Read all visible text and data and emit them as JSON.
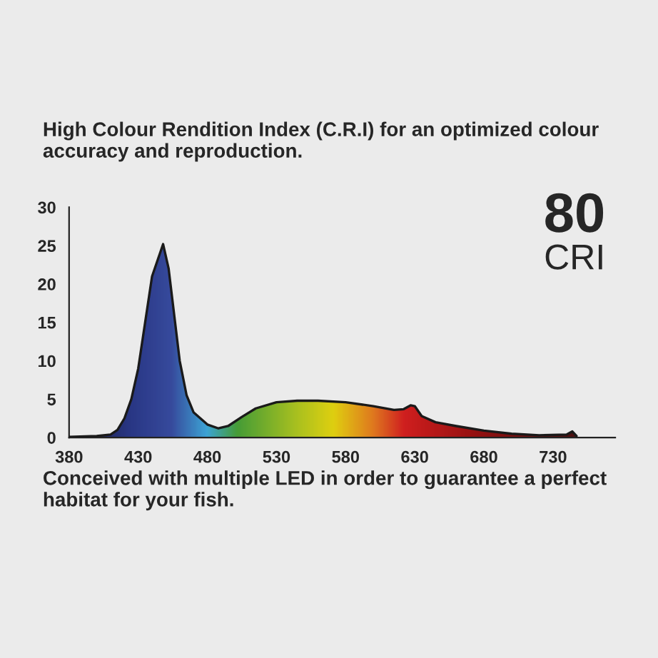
{
  "chart_data": {
    "type": "area",
    "title": "High Colour Rendition Index (C.R.I) for an optimized colour accuracy and reproduction.",
    "annotations": [
      "80",
      "CRI",
      "Conceived with multiple LED in order to guarantee a perfect habitat for your fish."
    ],
    "x": [
      380,
      400,
      410,
      415,
      420,
      425,
      430,
      435,
      440,
      448,
      452,
      456,
      460,
      465,
      470,
      480,
      488,
      495,
      505,
      515,
      530,
      545,
      560,
      580,
      600,
      615,
      622,
      627,
      630,
      635,
      645,
      660,
      680,
      700,
      720,
      740,
      744,
      747
    ],
    "series": [
      {
        "color": "#1a1a1a",
        "values": [
          0.1,
          0.2,
          0.4,
          1,
          2.5,
          5,
          9,
          15,
          21,
          25.2,
          22,
          16,
          10,
          5.5,
          3.3,
          1.7,
          1.2,
          1.5,
          2.7,
          3.8,
          4.6,
          4.8,
          4.8,
          4.6,
          4.1,
          3.6,
          3.7,
          4.2,
          4.1,
          2.8,
          2.0,
          1.5,
          0.9,
          0.5,
          0.3,
          0.4,
          0.8,
          0.2
        ]
      }
    ],
    "xlim": [
      380,
      775
    ],
    "ylim": [
      0,
      30
    ],
    "xticks": [
      380,
      430,
      480,
      530,
      580,
      630,
      680,
      730
    ],
    "yticks": [
      0,
      5,
      10,
      15,
      20,
      25,
      30
    ],
    "grid": false
  }
}
